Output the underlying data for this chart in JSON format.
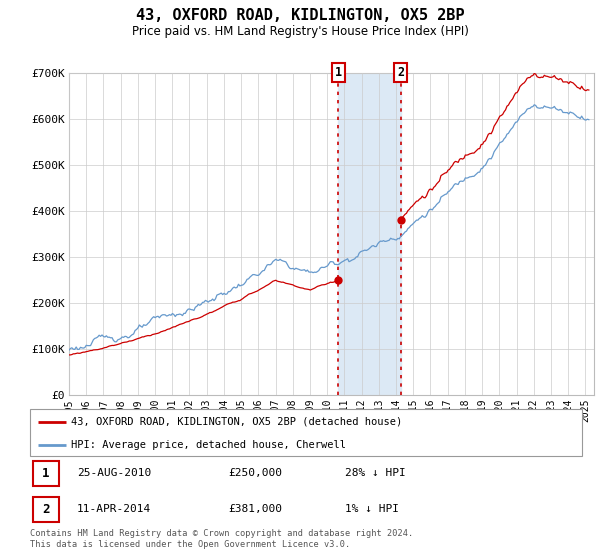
{
  "title": "43, OXFORD ROAD, KIDLINGTON, OX5 2BP",
  "subtitle": "Price paid vs. HM Land Registry's House Price Index (HPI)",
  "legend_label_red": "43, OXFORD ROAD, KIDLINGTON, OX5 2BP (detached house)",
  "legend_label_blue": "HPI: Average price, detached house, Cherwell",
  "transaction1_date": "25-AUG-2010",
  "transaction1_price": "£250,000",
  "transaction1_hpi": "28% ↓ HPI",
  "transaction2_date": "11-APR-2014",
  "transaction2_price": "£381,000",
  "transaction2_hpi": "1% ↓ HPI",
  "footer": "Contains HM Land Registry data © Crown copyright and database right 2024.\nThis data is licensed under the Open Government Licence v3.0.",
  "red_color": "#cc0000",
  "blue_color": "#6699cc",
  "highlight_color": "#dce9f5",
  "vline_color": "#cc0000",
  "ylim": [
    0,
    700000
  ],
  "transaction1_year": 2010.65,
  "transaction2_year": 2014.27,
  "transaction1_price_val": 250000,
  "transaction2_price_val": 381000
}
